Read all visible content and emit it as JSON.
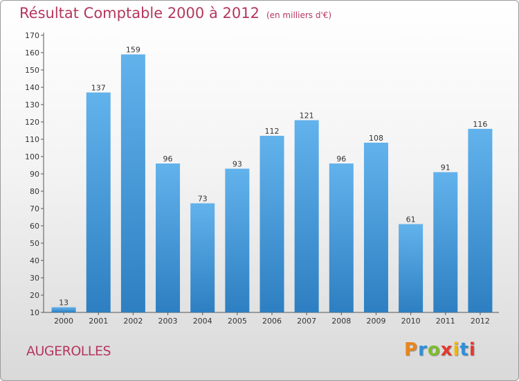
{
  "header": {
    "title": "Résultat Comptable 2000 à 2012",
    "subtitle": "(en milliers d'€)"
  },
  "footer": {
    "place": "AUGEROLLES",
    "logo": "Proxiti",
    "logo_colors": [
      "#e8851c",
      "#2f8fd8",
      "#7dbd2c",
      "#e33a2d",
      "#f2b705",
      "#2f8fd8",
      "#e33a2d"
    ]
  },
  "colors": {
    "title": "#b5365e",
    "bar_light": "#62b2ec",
    "bar_dark": "#2d7fc1"
  },
  "chart_data": {
    "type": "bar",
    "title": "Résultat Comptable 2000 à 2012",
    "xlabel": "",
    "ylabel": "",
    "categories": [
      "2000",
      "2001",
      "2002",
      "2003",
      "2004",
      "2005",
      "2006",
      "2007",
      "2008",
      "2009",
      "2010",
      "2011",
      "2012"
    ],
    "values": [
      13,
      137,
      159,
      96,
      73,
      93,
      112,
      121,
      96,
      108,
      61,
      91,
      116
    ],
    "ylim": [
      10,
      170
    ],
    "yticks": [
      10,
      20,
      30,
      40,
      50,
      60,
      70,
      80,
      90,
      100,
      110,
      120,
      130,
      140,
      150,
      160,
      170
    ],
    "grid": false,
    "legend": "none"
  }
}
